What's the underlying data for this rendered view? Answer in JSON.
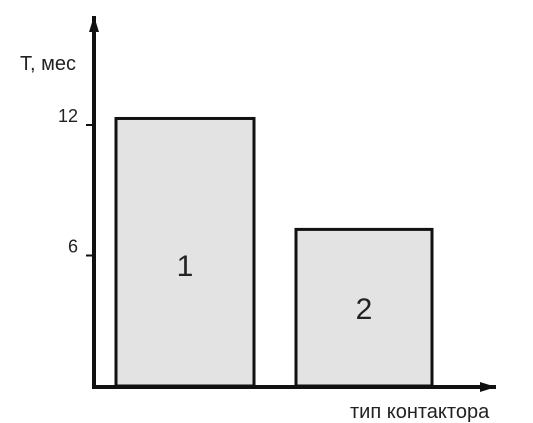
{
  "chart_data": {
    "type": "bar",
    "categories": [
      "1",
      "2"
    ],
    "values": [
      12.3,
      7.2
    ],
    "ylabel": "Т, мес",
    "xlabel": "тип контактора",
    "yticks": [
      {
        "value": 12,
        "label": "12"
      },
      {
        "value": 6,
        "label": "6"
      }
    ],
    "colors": {
      "bar_fill": "#e3e3e3",
      "bar_stroke": "#111111",
      "axis": "#111111"
    }
  }
}
